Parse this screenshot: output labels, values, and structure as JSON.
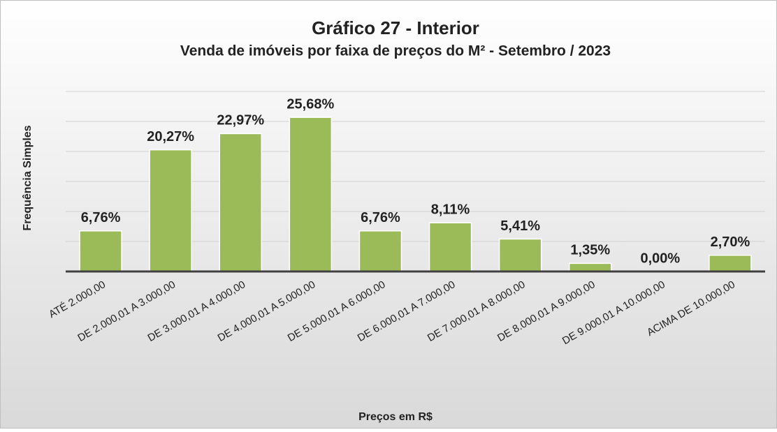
{
  "chart_data": {
    "type": "bar",
    "title": "Gráfico 27 - Interior",
    "subtitle": "Venda de imóveis por faixa de preços do M² - Setembro / 2023",
    "x_label": "Preços em R$",
    "y_label": "Frequência Simples",
    "categories": [
      "ATÉ 2.000,00",
      "DE 2.000,01 A 3.000,00",
      "DE 3.000,01 A 4.000,00",
      "DE 4.000,01 A 5.000,00",
      "DE 5.000,01 A 6.000,00",
      "DE 6.000,01 A 7.000,00",
      "DE 7.000,01 A 8.000,00",
      "DE 8.000,01 A 9.000,00",
      "DE 9.000,01 A 10.000,00",
      "ACIMA DE 10.000,00"
    ],
    "values": [
      6.76,
      20.27,
      22.97,
      25.68,
      6.76,
      8.11,
      5.41,
      1.35,
      0.0,
      2.7
    ],
    "value_labels": [
      "6,76%",
      "20,27%",
      "22,97%",
      "25,68%",
      "6,76%",
      "8,11%",
      "5,41%",
      "1,35%",
      "0,00%",
      "2,70%"
    ],
    "color": "#9bbb59",
    "ylim": [
      0,
      30
    ],
    "yticks": [
      0,
      5,
      10,
      15,
      20,
      25,
      30
    ],
    "grid": true
  }
}
